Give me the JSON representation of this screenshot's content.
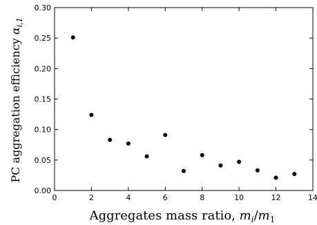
{
  "chart_data": {
    "type": "scatter",
    "xlabel": "Aggregates mass ratio,",
    "xlabel_math": "m_i/m_1",
    "ylabel": "PC aggregation efficiency",
    "ylabel_math": "α_{i,1}",
    "xlim": [
      0,
      14
    ],
    "ylim": [
      0,
      0.3
    ],
    "xticks": [
      0,
      2,
      4,
      6,
      8,
      10,
      12,
      14
    ],
    "yticks": [
      0.0,
      0.05,
      0.1,
      0.15,
      0.2,
      0.25,
      0.3
    ],
    "ytick_labels": [
      "0.00",
      "0.05",
      "0.10",
      "0.15",
      "0.20",
      "0.25",
      "0.30"
    ],
    "grid": false,
    "legend": "none",
    "marker_color": "#000000",
    "series": [
      {
        "x": [
          1,
          2,
          3,
          4,
          5,
          6,
          7,
          8,
          9,
          10,
          11,
          12,
          13
        ],
        "y": [
          0.251,
          0.124,
          0.083,
          0.077,
          0.056,
          0.091,
          0.032,
          0.058,
          0.041,
          0.047,
          0.033,
          0.021,
          0.027
        ]
      }
    ]
  }
}
